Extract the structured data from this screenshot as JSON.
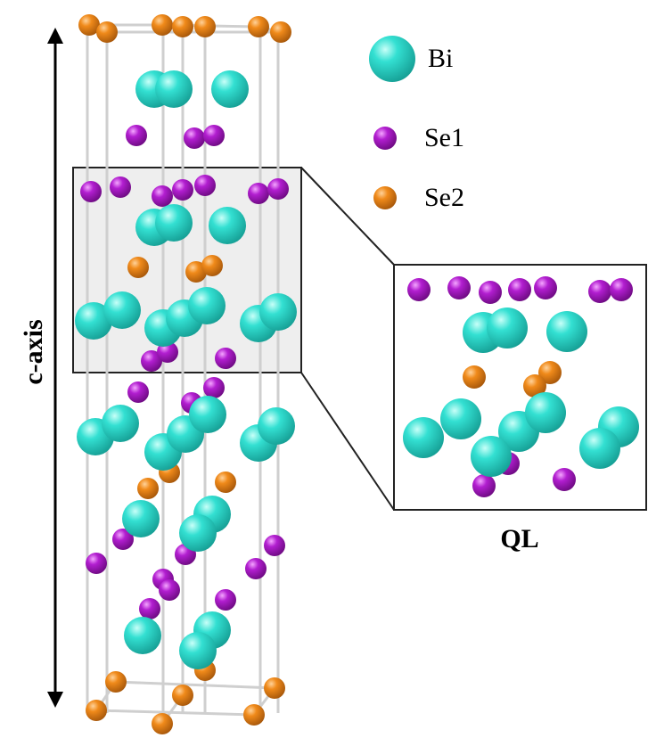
{
  "axis_label": "c-axis",
  "legend": [
    {
      "label": "Bi"
    },
    {
      "label": "Se1"
    },
    {
      "label": "Se2"
    }
  ],
  "inset_label": "QL"
}
